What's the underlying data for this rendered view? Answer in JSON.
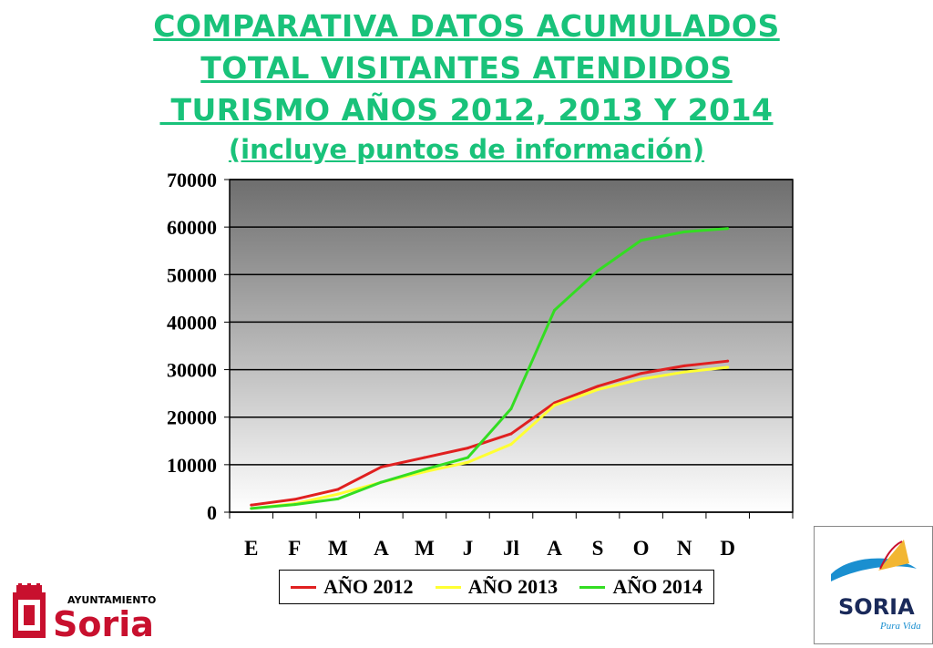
{
  "title": {
    "line1": "COMPARATIVA DATOS ACUMULADOS",
    "line2": "TOTAL VISITANTES ATENDIDOS",
    "line3": " TURISMO AÑOS 2012, 2013 Y 2014",
    "line4": "(incluye puntos de información)"
  },
  "chart_data": {
    "type": "line",
    "title": "COMPARATIVA DATOS ACUMULADOS TOTAL VISITANTES ATENDIDOS TURISMO AÑOS 2012, 2013 Y 2014 (incluye puntos de información)",
    "xlabel": "",
    "ylabel": "",
    "categories": [
      "E",
      "F",
      "M",
      "A",
      "M",
      "J",
      "Jl",
      "A",
      "S",
      "O",
      "N",
      "D"
    ],
    "ylim": [
      0,
      70000
    ],
    "yticks": [
      0,
      10000,
      20000,
      30000,
      40000,
      50000,
      60000,
      70000
    ],
    "grid": true,
    "legend_position": "bottom",
    "series": [
      {
        "name": "AÑO 2012",
        "color": "#e02020",
        "values": [
          1500,
          2700,
          4800,
          9500,
          11500,
          13500,
          16500,
          23000,
          26500,
          29200,
          30800,
          31800
        ]
      },
      {
        "name": "AÑO 2013",
        "color": "#ffff33",
        "values": [
          800,
          1800,
          3800,
          6300,
          8500,
          10500,
          14300,
          22500,
          25800,
          28000,
          29500,
          30500
        ]
      },
      {
        "name": "AÑO 2014",
        "color": "#33dd22",
        "values": [
          800,
          1600,
          2800,
          6300,
          9000,
          11500,
          21800,
          42500,
          50800,
          57200,
          59000,
          59700
        ]
      }
    ]
  },
  "logos": {
    "left_top": "AYUNTAMIENTO",
    "left_main": "Soria",
    "right_main": "SORIA",
    "right_sub": "Pura Vida"
  },
  "colors": {
    "title": "#19c27a",
    "plot_top": "#6e6e6e",
    "plot_bottom": "#ffffff",
    "brand_red": "#c8102e"
  }
}
